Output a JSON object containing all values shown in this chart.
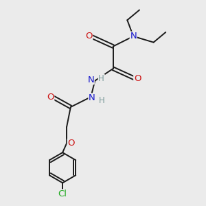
{
  "bg_color": "#ebebeb",
  "bond_color": "#1a1a1a",
  "bond_width": 1.4,
  "atom_colors": {
    "N": "#1414cc",
    "O": "#cc1414",
    "Cl": "#22aa22",
    "H": "#7a9a9a"
  },
  "font_size": 8.5,
  "figsize": [
    3.0,
    3.0
  ],
  "dpi": 100
}
